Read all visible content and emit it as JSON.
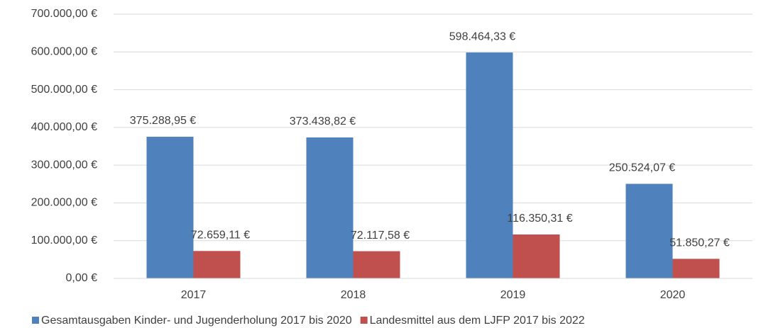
{
  "chart_data": {
    "type": "bar",
    "categories": [
      "2017",
      "2018",
      "2019",
      "2020"
    ],
    "series": [
      {
        "name": "Gesamtausgaben Kinder- und Jugenderholung 2017 bis 2020",
        "color": "#4f81bd",
        "values": [
          375288.95,
          373438.82,
          598464.33,
          250524.07
        ],
        "value_labels": [
          "375.288,95 €",
          "373.438,82 €",
          "598.464,33 €",
          "250.524,07 €"
        ]
      },
      {
        "name": "Landesmittel aus dem LJFP 2017 bis 2022",
        "color": "#c0504d",
        "values": [
          72659.11,
          72117.58,
          116350.31,
          51850.27
        ],
        "value_labels": [
          "72.659,11 €",
          "72.117,58 €",
          "116.350,31 €",
          "51.850,27 €"
        ]
      }
    ],
    "ylim": [
      0,
      700000
    ],
    "yticks": [
      {
        "value": 0,
        "label": "0,00 €"
      },
      {
        "value": 100000,
        "label": "100.000,00 €"
      },
      {
        "value": 200000,
        "label": "200.000,00 €"
      },
      {
        "value": 300000,
        "label": "300.000,00 €"
      },
      {
        "value": 400000,
        "label": "400.000,00 €"
      },
      {
        "value": 500000,
        "label": "500.000,00 €"
      },
      {
        "value": 600000,
        "label": "600.000,00 €"
      },
      {
        "value": 700000,
        "label": "700.000,00 €"
      }
    ],
    "grid": true,
    "legend": "bottom"
  }
}
